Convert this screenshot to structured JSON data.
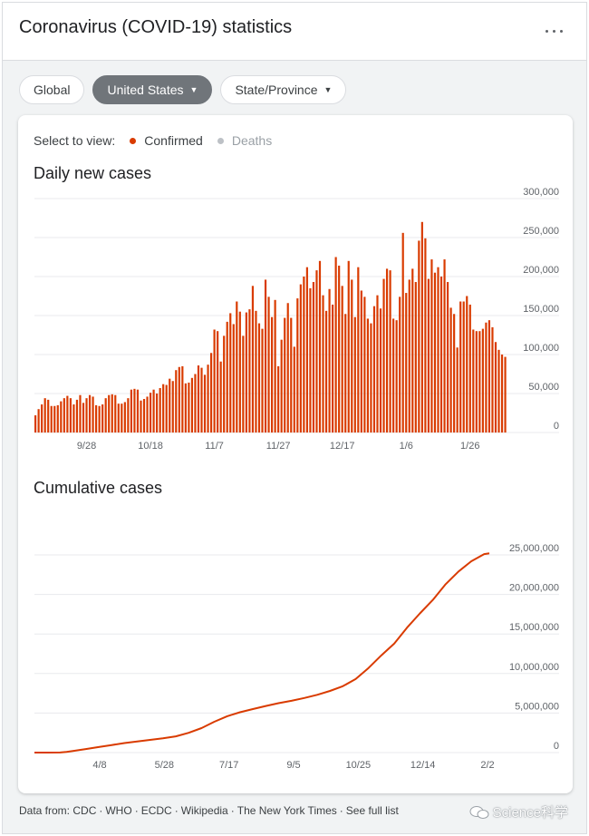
{
  "header": {
    "title": "Coronavirus (COVID-19) statistics"
  },
  "filters": [
    {
      "label": "Global",
      "active": false,
      "dropdown": false
    },
    {
      "label": "United States",
      "active": true,
      "dropdown": true
    },
    {
      "label": "State/Province",
      "active": false,
      "dropdown": true
    }
  ],
  "select_to_view": {
    "label": "Select to view:",
    "confirmed": "Confirmed",
    "deaths": "Deaths"
  },
  "colors": {
    "accent": "#d93b00",
    "muted": "#bdc1c6",
    "active_chip": "#70757a"
  },
  "chart_data": [
    {
      "type": "bar",
      "title": "Daily new cases",
      "xlabel": "",
      "ylabel": "",
      "ylim": [
        0,
        300000
      ],
      "yticks": [
        0,
        50000,
        100000,
        150000,
        200000,
        250000,
        300000
      ],
      "ytick_labels": [
        "0",
        "50,000",
        "100,000",
        "150,000",
        "200,000",
        "250,000",
        "300,000"
      ],
      "xtick_labels": [
        "9/28",
        "10/18",
        "11/7",
        "11/27",
        "12/17",
        "1/6",
        "1/26"
      ],
      "xtick_index": [
        16,
        36,
        56,
        76,
        96,
        116,
        136
      ],
      "series": [
        {
          "name": "Confirmed",
          "values": [
            22000,
            30000,
            36000,
            44000,
            42000,
            34000,
            34000,
            35000,
            40000,
            44000,
            47000,
            44000,
            36000,
            42000,
            48000,
            38000,
            44000,
            48000,
            46000,
            35000,
            34000,
            36000,
            44000,
            48000,
            49000,
            48000,
            37000,
            37000,
            39000,
            44000,
            55000,
            56000,
            55000,
            41000,
            43000,
            46000,
            51000,
            55000,
            50000,
            57000,
            62000,
            61000,
            69000,
            66000,
            80000,
            84000,
            85000,
            63000,
            64000,
            70000,
            75000,
            86000,
            83000,
            74000,
            87000,
            102000,
            132000,
            130000,
            91000,
            124000,
            142000,
            153000,
            139000,
            168000,
            155000,
            124000,
            154000,
            158000,
            188000,
            156000,
            140000,
            133000,
            196000,
            174000,
            148000,
            170000,
            85000,
            119000,
            147000,
            166000,
            147000,
            110000,
            172000,
            190000,
            200000,
            212000,
            185000,
            193000,
            208000,
            220000,
            176000,
            156000,
            184000,
            164000,
            225000,
            214000,
            188000,
            152000,
            220000,
            196000,
            148000,
            212000,
            182000,
            174000,
            146000,
            140000,
            162000,
            176000,
            159000,
            197000,
            210000,
            208000,
            146000,
            144000,
            174000,
            256000,
            179000,
            196000,
            210000,
            193000,
            246000,
            270000,
            249000,
            197000,
            222000,
            205000,
            212000,
            200000,
            222000,
            193000,
            160000,
            152000,
            109000,
            168000,
            168000,
            175000,
            164000,
            132000,
            130000,
            130000,
            133000,
            141000,
            144000,
            135000,
            116000,
            106000,
            100000,
            97000
          ]
        }
      ]
    },
    {
      "type": "line",
      "title": "Cumulative cases",
      "xlabel": "",
      "ylabel": "",
      "ylim": [
        0,
        25000000
      ],
      "yticks": [
        0,
        5000000,
        10000000,
        15000000,
        20000000,
        25000000
      ],
      "ytick_labels": [
        "0",
        "5,000,000",
        "10,000,000",
        "15,000,000",
        "20,000,000",
        "25,000,000"
      ],
      "xtick_labels": [
        "4/8",
        "5/28",
        "7/17",
        "9/5",
        "10/25",
        "12/14",
        "2/2"
      ],
      "series": [
        {
          "name": "Confirmed",
          "x": [
            0,
            10,
            20,
            25,
            30,
            40,
            50,
            60,
            70,
            80,
            90,
            100,
            110,
            120,
            130,
            140,
            150,
            160,
            170,
            180,
            190,
            200,
            210,
            220,
            230,
            240,
            250,
            260,
            270,
            280,
            290,
            300,
            310,
            320,
            330,
            340,
            350,
            354
          ],
          "values": [
            0,
            1000,
            10000,
            80000,
            200000,
            450000,
            700000,
            950000,
            1200000,
            1400000,
            1600000,
            1800000,
            2050000,
            2500000,
            3100000,
            3900000,
            4600000,
            5100000,
            5500000,
            5900000,
            6250000,
            6550000,
            6900000,
            7300000,
            7800000,
            8400000,
            9300000,
            10700000,
            12300000,
            13800000,
            15800000,
            17600000,
            19300000,
            21300000,
            22900000,
            24200000,
            25100000,
            25200000
          ]
        }
      ]
    }
  ],
  "footer": {
    "prefix": "Data from:",
    "sources": [
      "CDC",
      "WHO",
      "ECDC",
      "Wikipedia",
      "The New York Times"
    ],
    "see_all": "See full list"
  },
  "watermark": "Science科学"
}
